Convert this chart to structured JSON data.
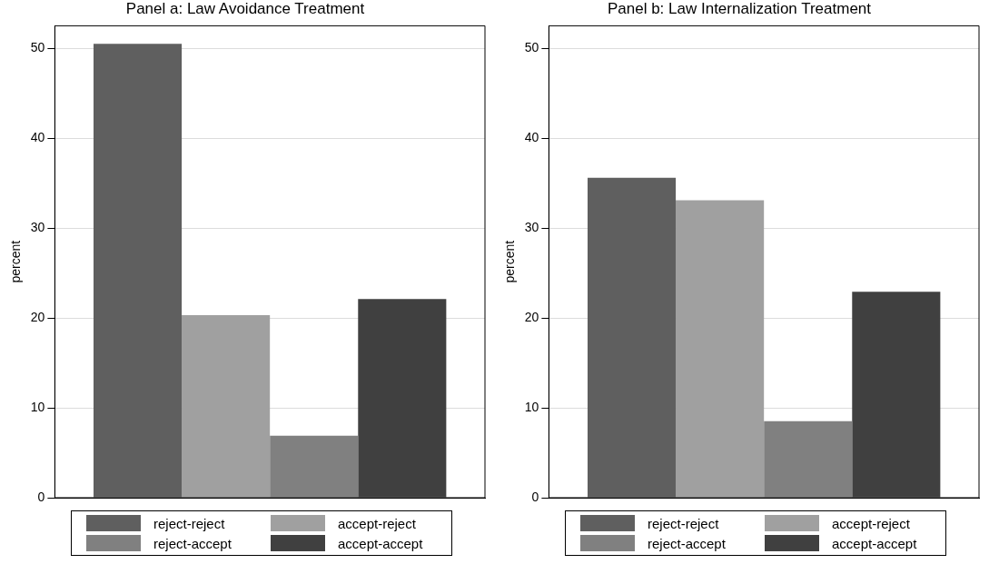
{
  "chart_data": [
    {
      "type": "bar",
      "title": "Panel a: Law Avoidance Treatment",
      "ylabel": "percent",
      "categories": [
        null
      ],
      "series": [
        {
          "name": "reject-reject",
          "color": "#5f5f5f",
          "values": [
            50.5
          ]
        },
        {
          "name": "accept-reject",
          "color": "#a0a0a0",
          "values": [
            20.3
          ]
        },
        {
          "name": "reject-accept",
          "color": "#808080",
          "values": [
            6.9
          ]
        },
        {
          "name": "accept-accept",
          "color": "#404040",
          "values": [
            22.1
          ]
        }
      ],
      "ylim": [
        0,
        52.5
      ],
      "yticks": [
        0,
        10,
        20,
        30,
        40,
        50
      ],
      "grid": "y",
      "legend": "bottom",
      "tick_labels": "y"
    },
    {
      "type": "bar",
      "title": "Panel b: Law Internalization Treatment",
      "ylabel": "percent",
      "categories": [
        null
      ],
      "series": [
        {
          "name": "reject-reject",
          "color": "#5f5f5f",
          "values": [
            35.6
          ]
        },
        {
          "name": "accept-reject",
          "color": "#a0a0a0",
          "values": [
            33.1
          ]
        },
        {
          "name": "reject-accept",
          "color": "#808080",
          "values": [
            8.5
          ]
        },
        {
          "name": "accept-accept",
          "color": "#404040",
          "values": [
            22.9
          ]
        }
      ],
      "ylim": [
        0,
        52.5
      ],
      "yticks": [
        0,
        10,
        20,
        30,
        40,
        50
      ],
      "grid": "y",
      "legend": "bottom",
      "tick_labels": "y"
    }
  ]
}
